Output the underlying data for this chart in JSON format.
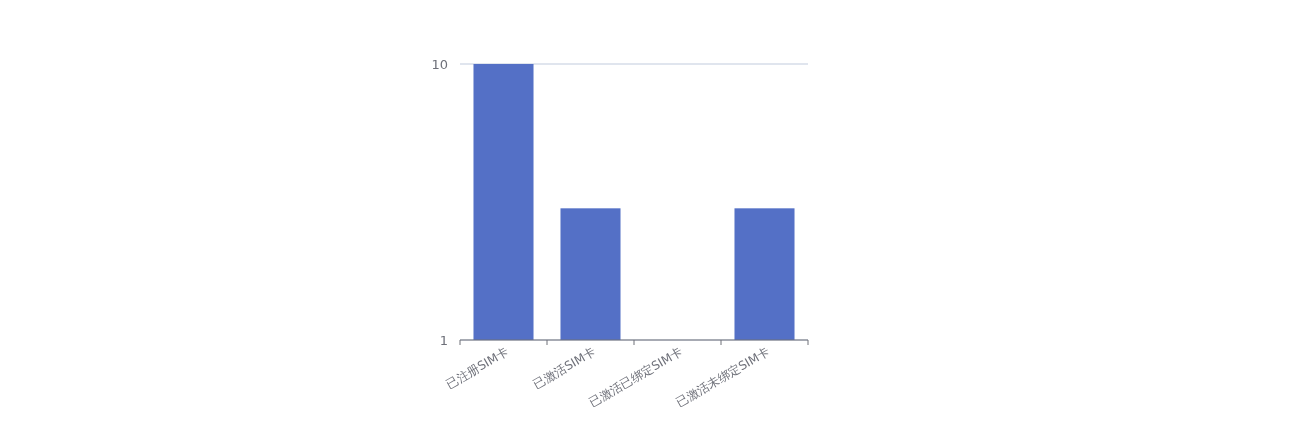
{
  "chart_data": {
    "type": "bar",
    "categories": [
      "已注册SIM卡",
      "已激活SIM卡",
      "已激活已绑定SIM卡",
      "已激活未绑定SIM卡"
    ],
    "values": [
      10,
      3,
      null,
      3
    ],
    "color": "#5470c6",
    "log": "y",
    "ylim": [
      1,
      10
    ],
    "yticks": [
      1,
      10
    ],
    "grid": "y"
  }
}
